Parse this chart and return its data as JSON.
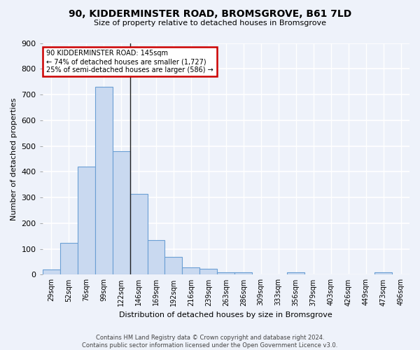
{
  "title": "90, KIDDERMINSTER ROAD, BROMSGROVE, B61 7LD",
  "subtitle": "Size of property relative to detached houses in Bromsgrove",
  "xlabel": "Distribution of detached houses by size in Bromsgrove",
  "ylabel": "Number of detached properties",
  "bin_labels": [
    "29sqm",
    "52sqm",
    "76sqm",
    "99sqm",
    "122sqm",
    "146sqm",
    "169sqm",
    "192sqm",
    "216sqm",
    "239sqm",
    "263sqm",
    "286sqm",
    "309sqm",
    "333sqm",
    "356sqm",
    "379sqm",
    "403sqm",
    "426sqm",
    "449sqm",
    "473sqm",
    "496sqm"
  ],
  "bar_values": [
    20,
    123,
    420,
    730,
    480,
    315,
    135,
    68,
    28,
    22,
    10,
    10,
    0,
    0,
    10,
    0,
    0,
    0,
    0,
    10,
    0
  ],
  "bar_color": "#c9d9f0",
  "bar_edge_color": "#6b9fd4",
  "vline_x_index": 4,
  "annotation_line1": "90 KIDDERMINSTER ROAD: 145sqm",
  "annotation_line2": "← 74% of detached houses are smaller (1,727)",
  "annotation_line3": "25% of semi-detached houses are larger (586) →",
  "annotation_box_color": "white",
  "annotation_box_edge_color": "#cc0000",
  "footer_text": "Contains HM Land Registry data © Crown copyright and database right 2024.\nContains public sector information licensed under the Open Government Licence v3.0.",
  "ylim": [
    0,
    900
  ],
  "yticks": [
    0,
    100,
    200,
    300,
    400,
    500,
    600,
    700,
    800,
    900
  ],
  "fig_bg_color": "#eef2fa",
  "axes_bg_color": "#eef2fa",
  "grid_color": "#ffffff"
}
